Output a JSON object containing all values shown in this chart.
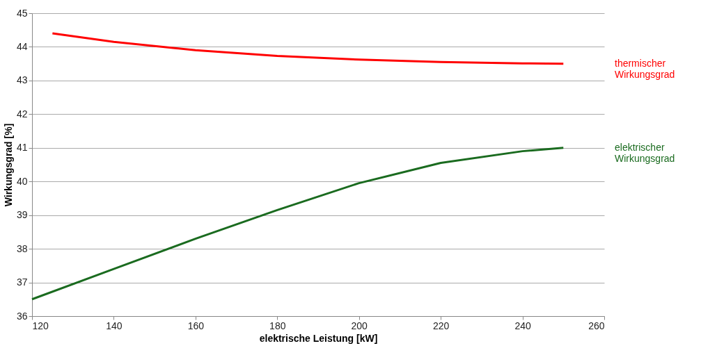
{
  "chart_data": {
    "type": "line",
    "xlabel": "elektrische Leistung [kW]",
    "ylabel": "Wirkungsgrad [%]",
    "xlim": [
      120,
      260
    ],
    "xticks": [
      120,
      140,
      160,
      180,
      200,
      220,
      240,
      260
    ],
    "ylim": [
      36,
      45
    ],
    "yticks": [
      36,
      37,
      38,
      39,
      40,
      41,
      42,
      43,
      44,
      45
    ],
    "grid": "y",
    "legend": "right",
    "marker": "none",
    "line_style": "solid",
    "series": [
      {
        "name": "thermischer Wirkungsgrad",
        "color": "#ff0000",
        "x": [
          125,
          140,
          160,
          180,
          200,
          220,
          240,
          250
        ],
        "values": [
          44.4,
          44.15,
          43.9,
          43.73,
          43.62,
          43.55,
          43.51,
          43.5
        ]
      },
      {
        "name": "elektrischer Wirkungsgrad",
        "color": "#1a6b1f",
        "x": [
          120,
          140,
          160,
          180,
          200,
          220,
          240,
          250
        ],
        "values": [
          36.5,
          37.4,
          38.3,
          39.15,
          39.95,
          40.55,
          40.9,
          41.0
        ]
      }
    ]
  }
}
